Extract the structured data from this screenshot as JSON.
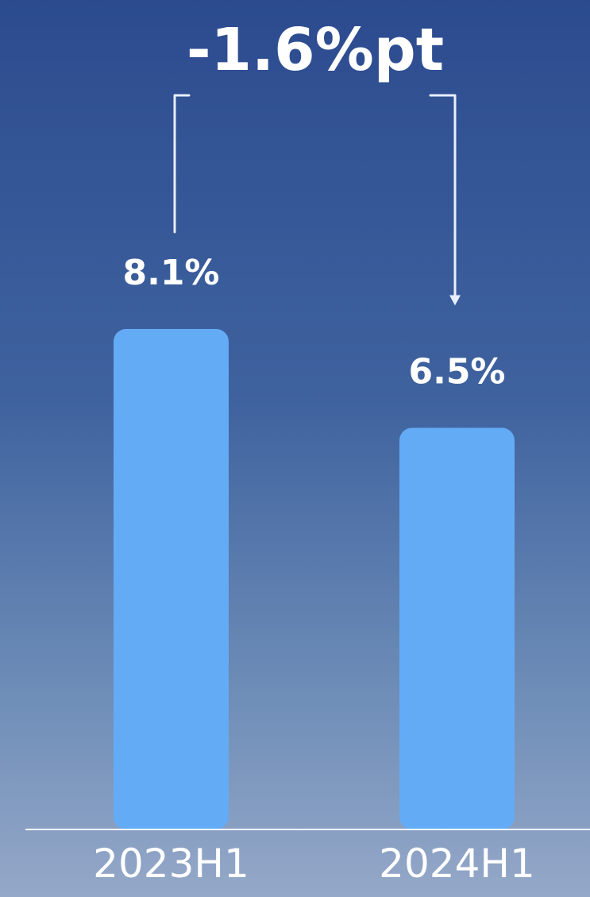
{
  "chart_data": {
    "type": "bar",
    "categories": [
      "2023H1",
      "2024H1"
    ],
    "values": [
      8.1,
      6.5
    ],
    "value_labels": [
      "8.1%",
      "6.5%"
    ],
    "ylim": [
      0,
      8.1
    ],
    "annotation": "-1.6%pt",
    "grid": false,
    "legend": "none",
    "colors": {
      "bar": "#64abf6",
      "text": "#ffffff",
      "connector": "#e8eefc",
      "baseline": "#ffffff"
    }
  }
}
